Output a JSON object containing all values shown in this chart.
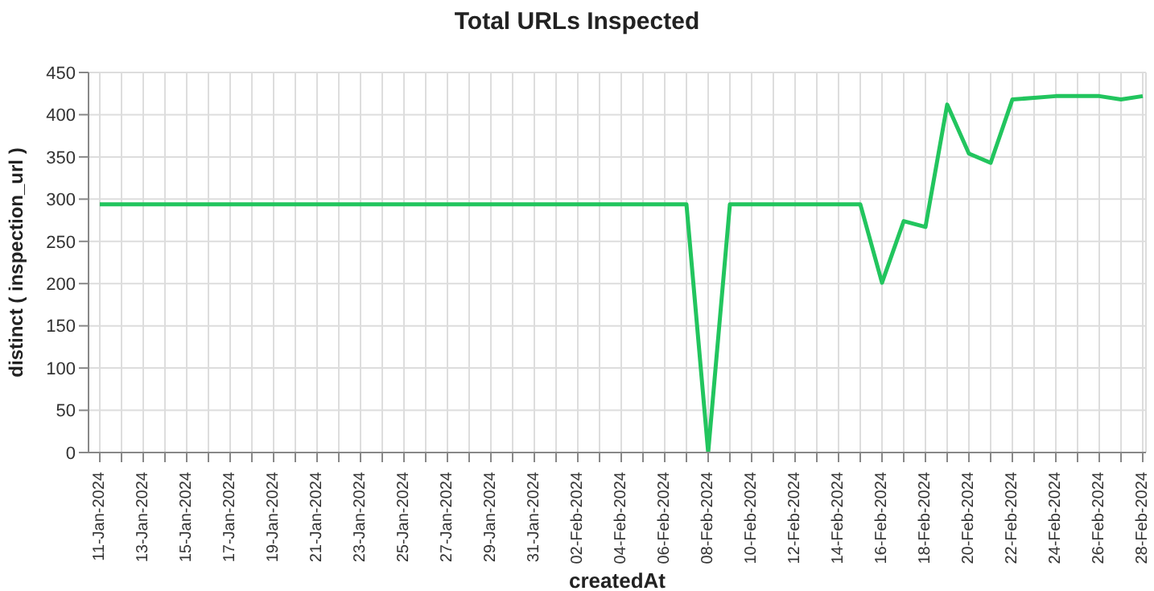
{
  "chart_data": {
    "type": "line",
    "title": "Total URLs Inspected",
    "xlabel": "createdAt",
    "ylabel": "distinct ( inspection_url )",
    "categories": [
      "11-Jan-2024",
      null,
      "13-Jan-2024",
      null,
      "15-Jan-2024",
      null,
      "17-Jan-2024",
      null,
      "19-Jan-2024",
      null,
      "21-Jan-2024",
      null,
      "23-Jan-2024",
      null,
      "25-Jan-2024",
      null,
      "27-Jan-2024",
      null,
      "29-Jan-2024",
      null,
      "31-Jan-2024",
      null,
      "02-Feb-2024",
      null,
      "04-Feb-2024",
      null,
      "06-Feb-2024",
      null,
      "08-Feb-2024",
      null,
      "10-Feb-2024",
      null,
      "12-Feb-2024",
      null,
      "14-Feb-2024",
      null,
      "16-Feb-2024",
      null,
      "18-Feb-2024",
      null,
      "20-Feb-2024",
      null,
      "22-Feb-2024",
      null,
      "24-Feb-2024",
      null,
      "26-Feb-2024",
      null,
      "28-Feb-2024"
    ],
    "series": [
      {
        "color": "#22c55e",
        "values": [
          294,
          294,
          294,
          294,
          294,
          294,
          294,
          294,
          294,
          294,
          294,
          294,
          294,
          294,
          294,
          294,
          294,
          294,
          294,
          294,
          294,
          294,
          294,
          294,
          294,
          294,
          294,
          294,
          0,
          294,
          294,
          294,
          294,
          294,
          294,
          294,
          201,
          274,
          267,
          412,
          354,
          343,
          418,
          420,
          422,
          422,
          422,
          418,
          422
        ]
      }
    ],
    "ylim": [
      0,
      450
    ],
    "yticks": [
      0,
      50,
      100,
      150,
      200,
      250,
      300,
      350,
      400,
      450
    ],
    "grid": true,
    "legend": false,
    "marker": "none",
    "line_style": "solid"
  }
}
